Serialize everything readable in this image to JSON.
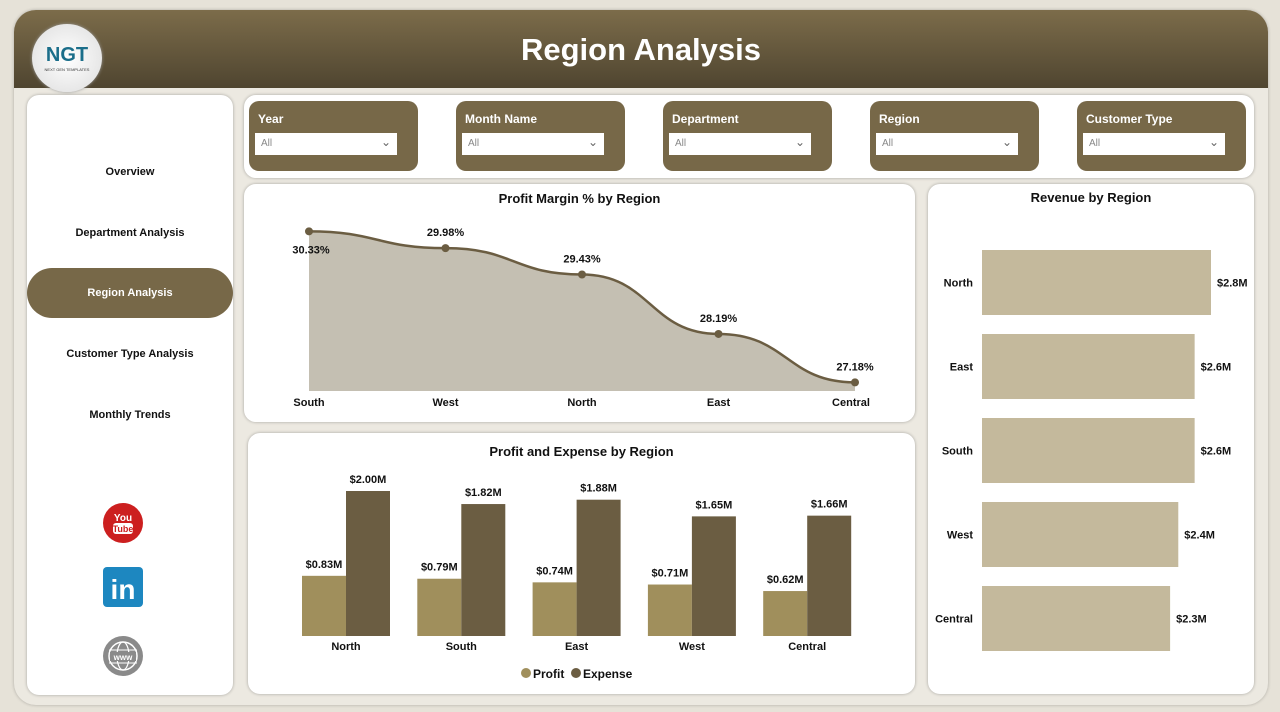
{
  "header": {
    "title": "Region Analysis",
    "logo_text": "NGT",
    "logo_subtext": "NEXT GEN TEMPLATES"
  },
  "sidebar": {
    "items": [
      {
        "label": "Overview"
      },
      {
        "label": "Department Analysis"
      },
      {
        "label": "Region Analysis",
        "active": true
      },
      {
        "label": "Customer Type Analysis"
      },
      {
        "label": "Monthly Trends"
      }
    ],
    "social": [
      {
        "icon": "youtube-icon",
        "text": "You Tube"
      },
      {
        "icon": "linkedin-icon",
        "text": "in"
      },
      {
        "icon": "www-globe-icon",
        "text": "www"
      }
    ]
  },
  "filters": [
    {
      "label": "Year",
      "value": "All"
    },
    {
      "label": "Month Name",
      "value": "All"
    },
    {
      "label": "Department",
      "value": "All"
    },
    {
      "label": "Region",
      "value": "All"
    },
    {
      "label": "Customer Type",
      "value": "All"
    }
  ],
  "colors": {
    "brand": "#776848",
    "profit": "#a08f5c",
    "expense": "#6b5d42",
    "revenue": "#c4b99c",
    "area": "#c4bfb2"
  },
  "chart_data": [
    {
      "type": "area",
      "title": "Profit Margin % by Region",
      "categories": [
        "South",
        "West",
        "North",
        "East",
        "Central"
      ],
      "values": [
        30.33,
        29.98,
        29.43,
        28.19,
        27.18
      ],
      "labels": [
        "30.33%",
        "29.98%",
        "29.43%",
        "28.19%",
        "27.18%"
      ],
      "ylim": [
        27.0,
        30.4
      ]
    },
    {
      "type": "bar",
      "title": "Profit and Expense by Region",
      "categories": [
        "North",
        "South",
        "East",
        "West",
        "Central"
      ],
      "series": [
        {
          "name": "Profit",
          "values": [
            0.83,
            0.79,
            0.74,
            0.71,
            0.62
          ],
          "labels": [
            "$0.83M",
            "$0.79M",
            "$0.74M",
            "$0.71M",
            "$0.62M"
          ]
        },
        {
          "name": "Expense",
          "values": [
            2.0,
            1.82,
            1.88,
            1.65,
            1.66
          ],
          "labels": [
            "$2.00M",
            "$1.82M",
            "$1.88M",
            "$1.65M",
            "$1.66M"
          ]
        }
      ],
      "ylim": [
        0,
        2.0
      ],
      "legend": "bottom"
    },
    {
      "type": "bar",
      "orientation": "horizontal",
      "title": "Revenue by Region",
      "categories": [
        "North",
        "East",
        "South",
        "West",
        "Central"
      ],
      "values": [
        2.8,
        2.6,
        2.6,
        2.4,
        2.3
      ],
      "labels": [
        "$2.8M",
        "$2.6M",
        "$2.6M",
        "$2.4M",
        "$2.3M"
      ],
      "xlim": [
        0,
        2.8
      ]
    }
  ]
}
